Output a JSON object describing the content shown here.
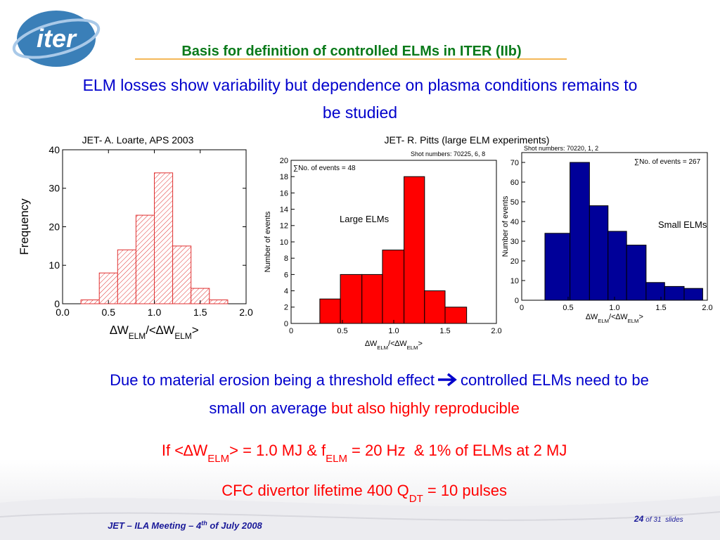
{
  "logo": "iter",
  "title": "Basis for definition of controlled ELMs in ITER (IIb)",
  "subtitle": [
    "ELM losses show variability but dependence on plasma conditions remains to",
    "be studied"
  ],
  "sources": [
    "JET- A. Loarte, APS 2003",
    "JET- R. Pitts (large ELM experiments)"
  ],
  "chart_data": [
    {
      "type": "histogram",
      "color": "#e03030",
      "hatch": true,
      "ylabel": "Frequency",
      "xlabel": [
        "∆W",
        "ELM",
        "/<∆W",
        "ELM",
        ">"
      ],
      "bins": [
        0.2,
        0.4,
        0.6,
        0.8,
        1.0,
        1.2,
        1.4,
        1.6,
        1.8
      ],
      "values": [
        1,
        8,
        14,
        23,
        34,
        15,
        4,
        1
      ],
      "xlim": [
        0,
        2
      ],
      "xticks": [
        {
          "value": 0,
          "label": "0.0"
        },
        0.5,
        {
          "value": 1,
          "label": "1.0"
        },
        1.5,
        {
          "value": 2,
          "label": "2.0"
        }
      ],
      "ylim": [
        0,
        40
      ],
      "yticks": [
        0,
        10,
        20,
        30,
        40
      ]
    },
    {
      "type": "histogram",
      "color": "#ff0000",
      "hatch": false,
      "ylabel": "Number of events",
      "xlabel": [
        "∆W",
        "ELM",
        "/<∆W",
        "ELM",
        ">"
      ],
      "events_note": "∑No. of events = 48",
      "shots_note": "Shot numbers: 70225, 6, 8",
      "label": "Large ELMs",
      "bins": [
        0.28,
        0.48,
        0.69,
        0.89,
        1.1,
        1.3,
        1.5,
        1.71
      ],
      "values": [
        3,
        6,
        6,
        9,
        18,
        4,
        2
      ],
      "xlim": [
        0,
        2
      ],
      "xticks": [
        0,
        0.5,
        {
          "value": 1,
          "label": "1.0"
        },
        1.5,
        {
          "value": 2,
          "label": "2.0"
        }
      ],
      "ylim": [
        0,
        20
      ],
      "yticks": [
        0,
        2,
        4,
        6,
        8,
        10,
        12,
        14,
        16,
        18,
        20
      ]
    },
    {
      "type": "histogram",
      "color": "#000099",
      "hatch": false,
      "ylabel": "Number of events",
      "xlabel": [
        "∆W",
        "ELM",
        "/<∆W",
        "ELM",
        ">"
      ],
      "events_note": "∑No. of events = 267",
      "shots_note": "Shot numbers: 70220, 1, 2",
      "label": "Small ELMs",
      "bins": [
        0.25,
        0.52,
        0.73,
        0.93,
        1.13,
        1.34,
        1.54,
        1.75,
        1.95
      ],
      "values": [
        34,
        70,
        48,
        35,
        28,
        9,
        7,
        6
      ],
      "xlim": [
        0,
        2
      ],
      "xticks": [
        0,
        0.5,
        {
          "value": 1,
          "label": "1.0"
        },
        1.5,
        {
          "value": 2,
          "label": "2.0"
        }
      ],
      "ylim": [
        0,
        75
      ],
      "yticks": [
        0,
        10,
        20,
        30,
        40,
        50,
        60,
        70
      ]
    }
  ],
  "conclusion": {
    "line1": [
      "Due to material erosion being a threshold effect",
      "controlled ELMs need to be"
    ],
    "line2": [
      "small on average",
      " but also highly reproducible"
    ],
    "condition": [
      "If <∆W",
      "ELM",
      "> = 1.0 MJ & f",
      "ELM",
      " = 20 Hz  & 1% of ELMs at 2 MJ"
    ],
    "lifetime": [
      "CFC divertor lifetime 400 Q",
      "DT",
      " = 10 pulses"
    ]
  },
  "footer": {
    "meeting": [
      "JET – ILA Meeting – 4",
      "th",
      " of July 2008"
    ],
    "page": "24",
    "of": "of 31  slides"
  }
}
